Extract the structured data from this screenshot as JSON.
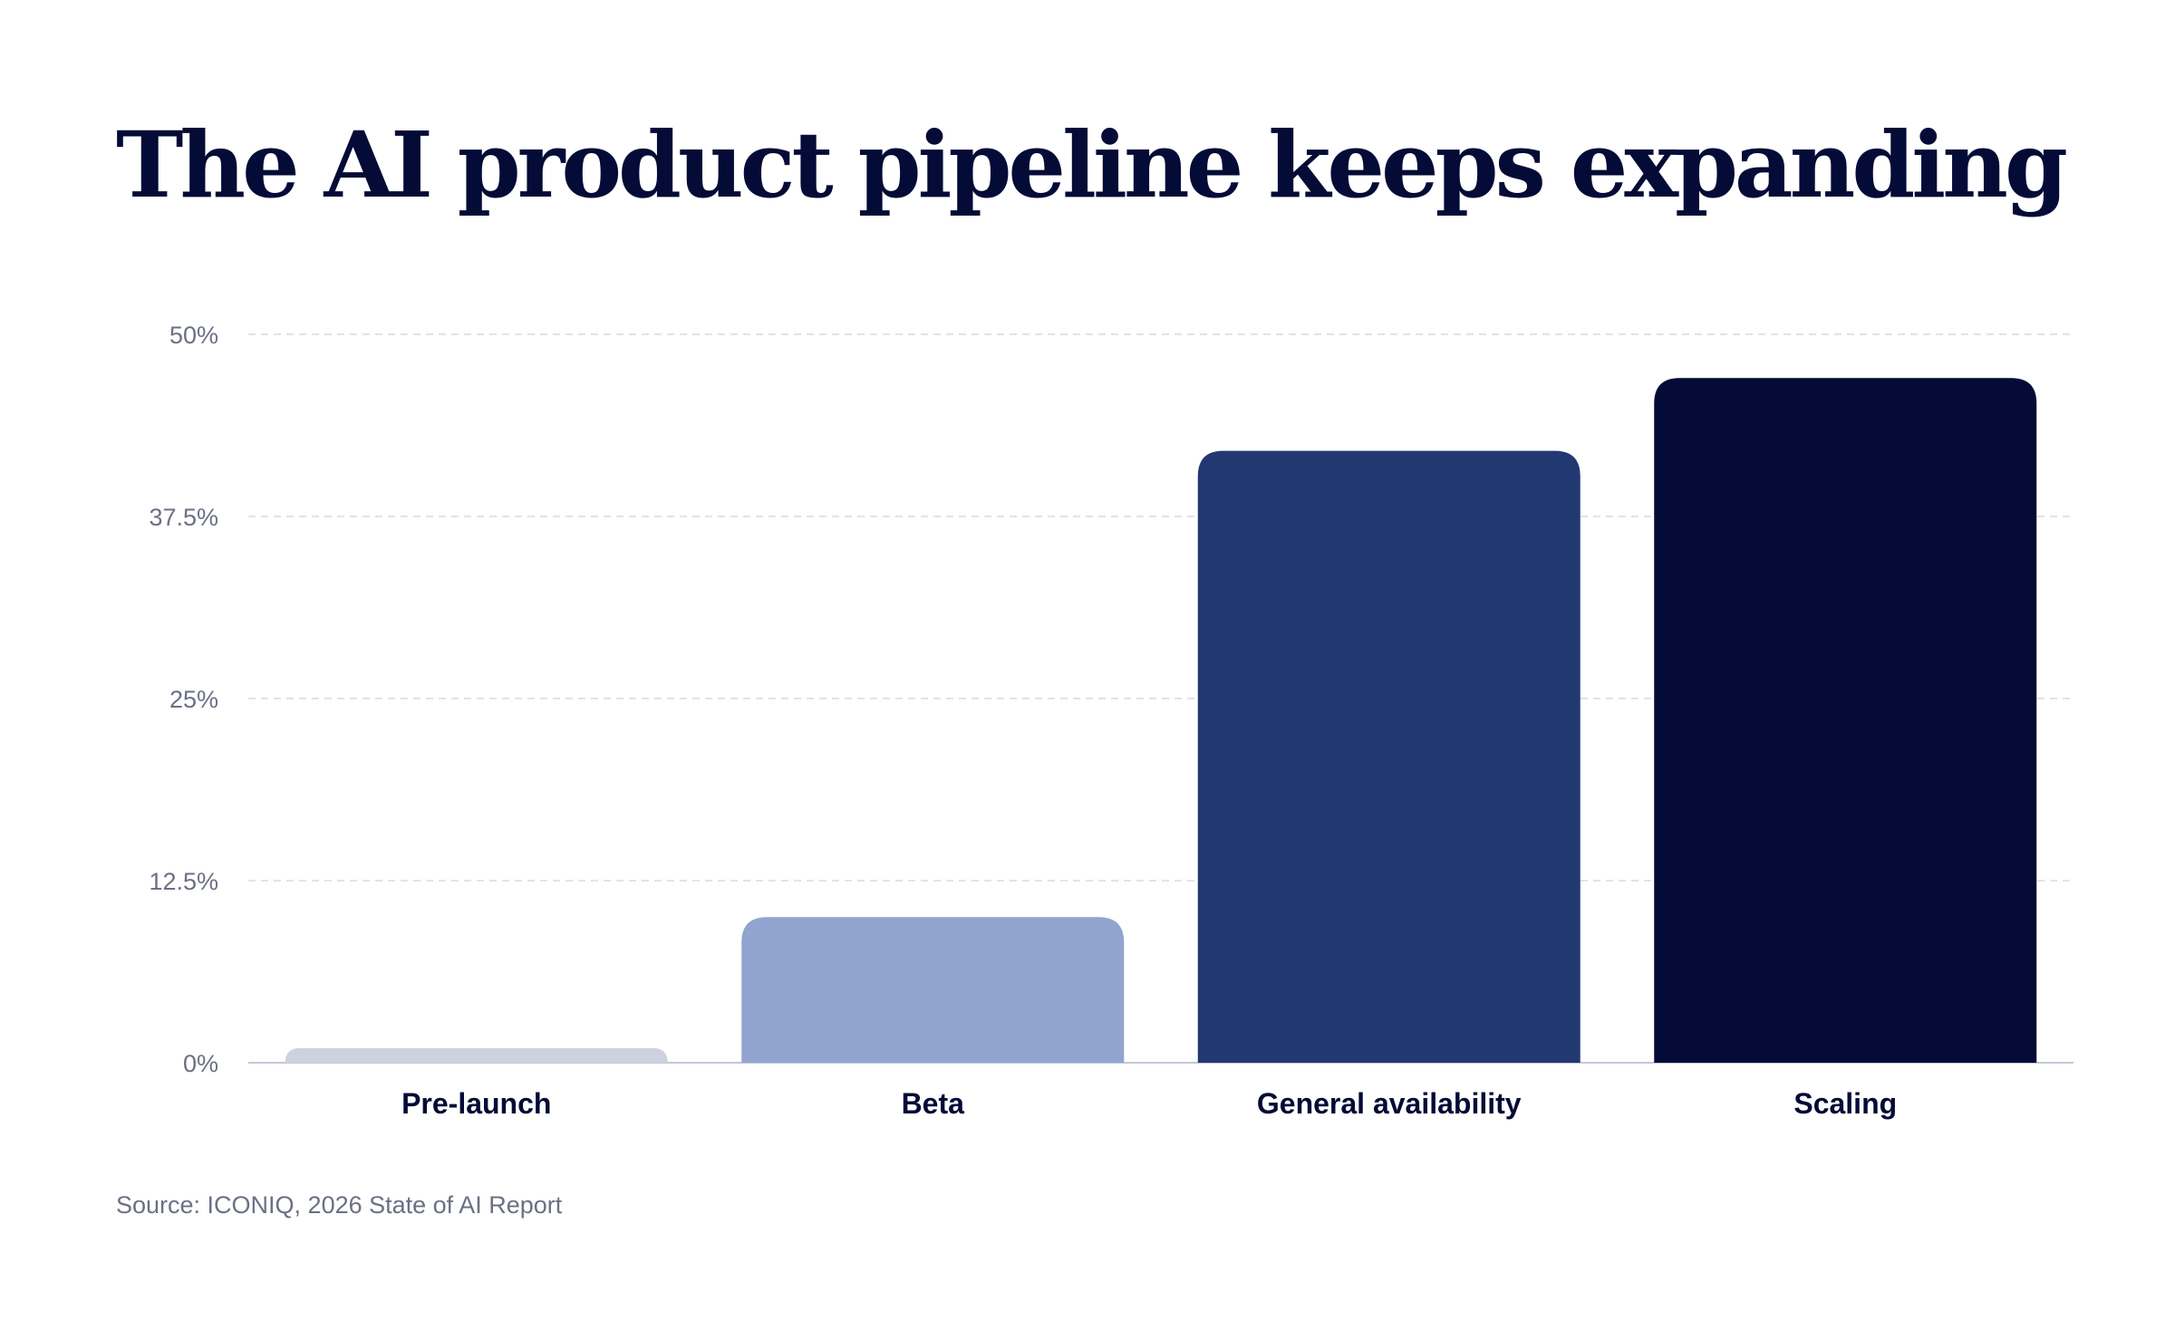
{
  "title": "The AI product pipeline keeps expanding",
  "source": "Source: ICONIQ, 2026 State of AI Report",
  "chart_data": {
    "type": "bar",
    "title": "The AI product pipeline keeps expanding",
    "xlabel": "",
    "ylabel": "",
    "categories": [
      "Pre-launch",
      "Beta",
      "General availability",
      "Scaling"
    ],
    "values": [
      1,
      10,
      42,
      47
    ],
    "colors": [
      "#cdd1e0",
      "#91a4cf",
      "#223871",
      "#030b36"
    ],
    "ylim": [
      0,
      50
    ],
    "yticks": [
      0,
      12.5,
      25,
      37.5,
      50
    ],
    "ytick_labels": [
      "0%",
      "12.5%",
      "25%",
      "37.5%",
      "50%"
    ],
    "grid": true,
    "legend": "none"
  }
}
